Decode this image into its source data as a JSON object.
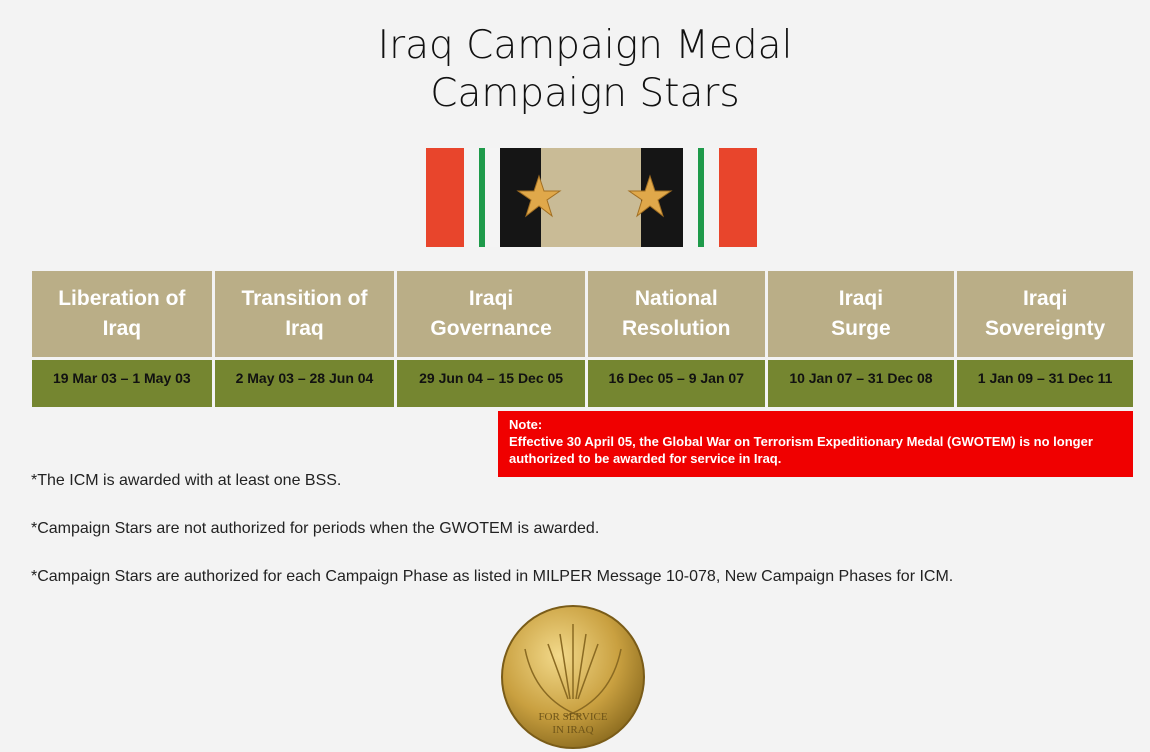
{
  "title_line1": "Iraq Campaign Medal",
  "title_line2": "Campaign Stars",
  "phases": [
    {
      "name_line1": "Liberation of",
      "name_line2": "Iraq",
      "dates": "19 Mar 03 – 1 May 03"
    },
    {
      "name_line1": "Transition of",
      "name_line2": "Iraq",
      "dates": "2 May 03 – 28 Jun 04"
    },
    {
      "name_line1": "Iraqi",
      "name_line2": "Governance",
      "dates": "29 Jun 04 – 15 Dec 05"
    },
    {
      "name_line1": "National",
      "name_line2": "Resolution",
      "dates": "16 Dec 05 – 9 Jan 07"
    },
    {
      "name_line1": "Iraqi",
      "name_line2": "Surge",
      "dates": "10 Jan 07 – 31 Dec 08"
    },
    {
      "name_line1": "Iraqi",
      "name_line2": "Sovereignty",
      "dates": "1 Jan 09 – 31 Dec 11"
    }
  ],
  "note": {
    "heading": "Note:",
    "text": "Effective 30 April 05, the Global War on Terrorism Expeditionary Medal (GWOTEM) is no longer authorized  to be awarded for service in Iraq."
  },
  "footnotes": [
    "*The ICM is awarded with at least one BSS.",
    "*Campaign Stars are not authorized for periods when the GWOTEM is awarded.",
    "*Campaign Stars are authorized for each Campaign Phase as listed in MILPER Message 10-078, New Campaign Phases for ICM."
  ],
  "medal_text": "FOR SERVICE IN IRAQ",
  "colors": {
    "header": "#baae87",
    "dates": "#758630",
    "note": "#f00000"
  }
}
